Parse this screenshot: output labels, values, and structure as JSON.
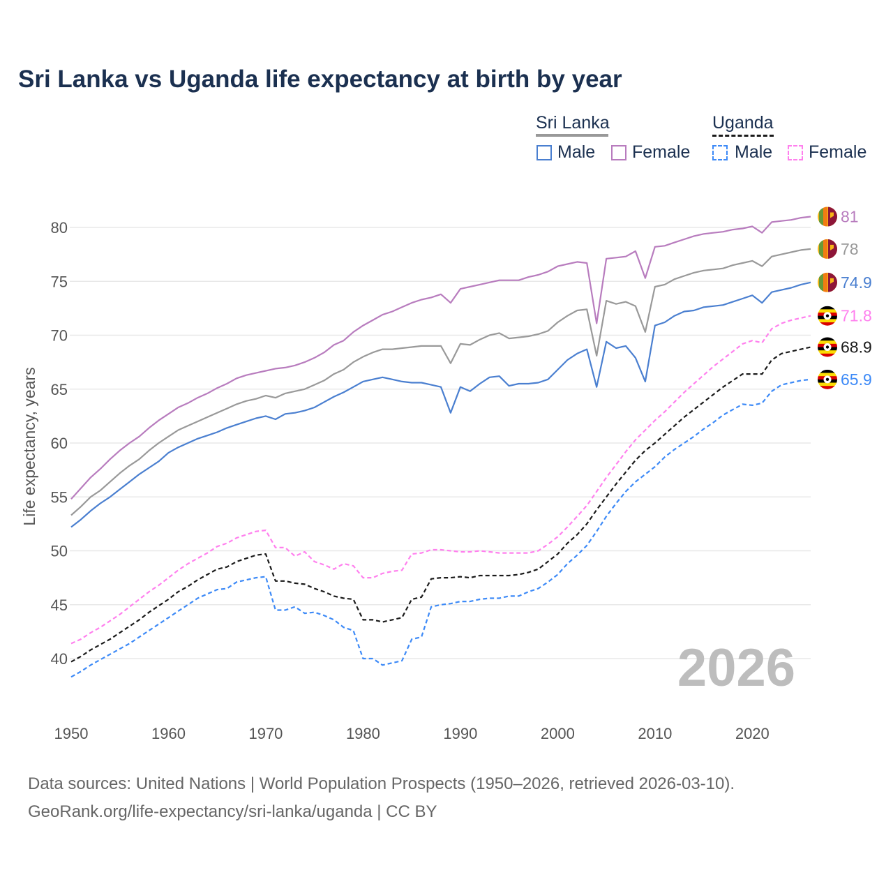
{
  "title": "Sri Lanka vs Uganda life expectancy at birth by year",
  "legend": {
    "groups": [
      {
        "label": "Sri Lanka",
        "items": [
          "Male",
          "Female"
        ]
      },
      {
        "label": "Uganda",
        "items": [
          "Male",
          "Female"
        ]
      }
    ]
  },
  "source": {
    "line1": "Data sources: United Nations | World Population Prospects (1950–2026, retrieved 2026-03-10).",
    "line2": "GeoRank.org/life-expectancy/sri-lanka/uganda | CC BY"
  },
  "chart_data": {
    "type": "line",
    "title": "Sri Lanka vs Uganda life expectancy at birth by year",
    "xlabel": "",
    "ylabel": "Life expectancy, years",
    "xlim": [
      1950,
      2026
    ],
    "ylim": [
      36,
      84
    ],
    "xticks": [
      1950,
      1960,
      1970,
      1980,
      1990,
      2000,
      2010,
      2020
    ],
    "yticks": [
      40,
      45,
      50,
      55,
      60,
      65,
      70,
      75,
      80
    ],
    "grid": true,
    "legend_placement": "top-right",
    "watermark": "2026",
    "x_start": 1950,
    "series": [
      {
        "name": "Sri Lanka Female",
        "country": "sri-lanka",
        "color": "#b87cbe",
        "dash": false,
        "end_label": "81",
        "values": [
          54.8,
          55.8,
          56.8,
          57.6,
          58.5,
          59.3,
          60.0,
          60.6,
          61.4,
          62.1,
          62.7,
          63.3,
          63.7,
          64.2,
          64.6,
          65.1,
          65.5,
          66.0,
          66.3,
          66.5,
          66.7,
          66.9,
          67.0,
          67.2,
          67.5,
          67.9,
          68.4,
          69.1,
          69.5,
          70.3,
          70.9,
          71.4,
          71.9,
          72.2,
          72.6,
          73.0,
          73.3,
          73.5,
          73.8,
          73.0,
          74.3,
          74.5,
          74.7,
          74.9,
          75.1,
          75.1,
          75.1,
          75.4,
          75.6,
          75.9,
          76.4,
          76.6,
          76.8,
          76.7,
          71.1,
          77.1,
          77.2,
          77.3,
          77.8,
          75.3,
          78.2,
          78.3,
          78.6,
          78.9,
          79.2,
          79.4,
          79.5,
          79.6,
          79.8,
          79.9,
          80.1,
          79.5,
          80.5,
          80.6,
          80.7,
          80.9,
          81.0
        ]
      },
      {
        "name": "Sri Lanka",
        "country": "sri-lanka",
        "color": "#999999",
        "dash": false,
        "end_label": "78",
        "values": [
          53.3,
          54.1,
          55.0,
          55.6,
          56.4,
          57.2,
          57.9,
          58.5,
          59.3,
          60.0,
          60.6,
          61.2,
          61.6,
          62.0,
          62.4,
          62.8,
          63.2,
          63.6,
          63.9,
          64.1,
          64.4,
          64.2,
          64.6,
          64.8,
          65.0,
          65.4,
          65.8,
          66.4,
          66.8,
          67.5,
          68.0,
          68.4,
          68.7,
          68.7,
          68.8,
          68.9,
          69.0,
          69.0,
          69.0,
          67.4,
          69.2,
          69.1,
          69.6,
          70.0,
          70.2,
          69.7,
          69.8,
          69.9,
          70.1,
          70.4,
          71.2,
          71.8,
          72.3,
          72.4,
          68.1,
          73.2,
          72.9,
          73.1,
          72.7,
          70.3,
          74.5,
          74.7,
          75.2,
          75.5,
          75.8,
          76.0,
          76.1,
          76.2,
          76.5,
          76.7,
          76.9,
          76.4,
          77.3,
          77.5,
          77.7,
          77.9,
          78.0
        ]
      },
      {
        "name": "Sri Lanka Male",
        "country": "sri-lanka",
        "color": "#4a7fd0",
        "dash": false,
        "end_label": "74.9",
        "values": [
          52.2,
          52.9,
          53.7,
          54.4,
          55.0,
          55.7,
          56.4,
          57.1,
          57.7,
          58.3,
          59.1,
          59.6,
          60.0,
          60.4,
          60.7,
          61.0,
          61.4,
          61.7,
          62.0,
          62.3,
          62.5,
          62.2,
          62.7,
          62.8,
          63.0,
          63.3,
          63.8,
          64.3,
          64.7,
          65.2,
          65.7,
          65.9,
          66.1,
          65.9,
          65.7,
          65.6,
          65.6,
          65.4,
          65.2,
          62.8,
          65.2,
          64.8,
          65.5,
          66.1,
          66.2,
          65.3,
          65.5,
          65.5,
          65.6,
          65.9,
          66.8,
          67.7,
          68.3,
          68.7,
          65.2,
          69.4,
          68.8,
          69.0,
          67.9,
          65.7,
          70.9,
          71.2,
          71.8,
          72.2,
          72.3,
          72.6,
          72.7,
          72.8,
          73.1,
          73.4,
          73.7,
          73.0,
          74.0,
          74.2,
          74.4,
          74.7,
          74.9
        ]
      },
      {
        "name": "Uganda Female",
        "country": "uganda",
        "color": "#ff80ee",
        "dash": true,
        "end_label": "71.8",
        "values": [
          41.4,
          41.8,
          42.4,
          42.9,
          43.5,
          44.1,
          44.8,
          45.5,
          46.2,
          46.8,
          47.5,
          48.2,
          48.8,
          49.3,
          49.8,
          50.4,
          50.7,
          51.2,
          51.5,
          51.8,
          51.9,
          50.3,
          50.3,
          49.5,
          49.9,
          49.0,
          48.7,
          48.3,
          48.8,
          48.6,
          47.5,
          47.5,
          47.9,
          48.1,
          48.2,
          49.7,
          49.8,
          50.1,
          50.1,
          50.0,
          49.9,
          49.9,
          50.0,
          49.9,
          49.8,
          49.8,
          49.8,
          49.8,
          50.0,
          50.6,
          51.3,
          52.2,
          53.2,
          54.2,
          55.5,
          56.8,
          58.0,
          59.2,
          60.3,
          61.2,
          62.1,
          62.9,
          63.8,
          64.7,
          65.5,
          66.3,
          67.1,
          67.8,
          68.5,
          69.2,
          69.5,
          69.3,
          70.6,
          71.1,
          71.4,
          71.6,
          71.8
        ]
      },
      {
        "name": "Uganda",
        "country": "uganda",
        "color": "#1a1a1a",
        "dash": true,
        "end_label": "68.9",
        "values": [
          39.7,
          40.2,
          40.8,
          41.3,
          41.8,
          42.4,
          43.0,
          43.6,
          44.3,
          44.9,
          45.5,
          46.2,
          46.7,
          47.3,
          47.8,
          48.3,
          48.5,
          49.0,
          49.3,
          49.6,
          49.7,
          47.2,
          47.2,
          47.0,
          46.9,
          46.5,
          46.2,
          45.8,
          45.6,
          45.5,
          43.6,
          43.6,
          43.4,
          43.6,
          43.8,
          45.5,
          45.7,
          47.4,
          47.5,
          47.5,
          47.6,
          47.5,
          47.7,
          47.7,
          47.7,
          47.7,
          47.8,
          48.0,
          48.3,
          49.0,
          49.7,
          50.7,
          51.5,
          52.5,
          53.8,
          55.0,
          56.2,
          57.3,
          58.4,
          59.3,
          60.0,
          60.8,
          61.6,
          62.4,
          63.1,
          63.8,
          64.5,
          65.2,
          65.8,
          66.4,
          66.4,
          66.4,
          67.7,
          68.3,
          68.5,
          68.7,
          68.9
        ]
      },
      {
        "name": "Uganda Male",
        "country": "uganda",
        "color": "#3d8af7",
        "dash": true,
        "end_label": "65.9",
        "values": [
          38.3,
          38.8,
          39.4,
          39.9,
          40.4,
          40.9,
          41.4,
          42.0,
          42.6,
          43.2,
          43.8,
          44.4,
          45.0,
          45.6,
          46.0,
          46.4,
          46.5,
          47.1,
          47.3,
          47.5,
          47.6,
          44.5,
          44.5,
          44.8,
          44.2,
          44.3,
          44.0,
          43.6,
          42.9,
          42.6,
          40.0,
          40.0,
          39.4,
          39.6,
          39.8,
          41.8,
          42.0,
          44.8,
          45.0,
          45.1,
          45.3,
          45.3,
          45.5,
          45.6,
          45.6,
          45.8,
          45.8,
          46.2,
          46.5,
          47.1,
          47.8,
          48.8,
          49.6,
          50.5,
          51.8,
          53.2,
          54.4,
          55.5,
          56.4,
          57.1,
          57.8,
          58.7,
          59.4,
          60.0,
          60.6,
          61.3,
          61.9,
          62.6,
          63.1,
          63.6,
          63.5,
          63.7,
          64.8,
          65.4,
          65.6,
          65.8,
          65.9
        ]
      }
    ]
  }
}
